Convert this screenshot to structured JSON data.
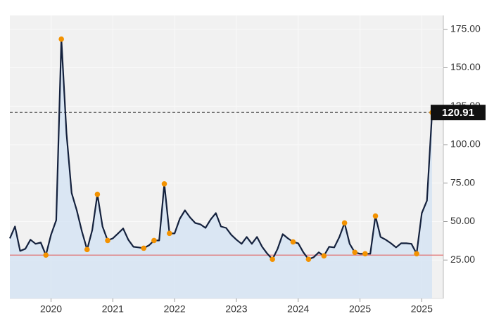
{
  "chart_data": {
    "type": "line",
    "categories": [
      null,
      null,
      null,
      null,
      null,
      null,
      null,
      null,
      "2020",
      null,
      null,
      null,
      null,
      null,
      null,
      null,
      null,
      null,
      null,
      null,
      "2021",
      null,
      null,
      null,
      null,
      null,
      null,
      null,
      null,
      null,
      null,
      null,
      "2022",
      null,
      null,
      null,
      null,
      null,
      null,
      null,
      null,
      null,
      null,
      null,
      "2023",
      null,
      null,
      null,
      null,
      null,
      null,
      null,
      null,
      null,
      null,
      null,
      "2024",
      null,
      null,
      null,
      null,
      null,
      null,
      null,
      null,
      null,
      null,
      null,
      "2025",
      null,
      null,
      null,
      null,
      null,
      null,
      null,
      null,
      null,
      null,
      null,
      "2025",
      null,
      null
    ],
    "values": [
      39.1,
      46.8,
      30.9,
      32.3,
      38.2,
      35.5,
      36.4,
      28.2,
      41.4,
      50.9,
      168.6,
      107.3,
      68.6,
      57.3,
      43.6,
      31.8,
      44.5,
      67.7,
      46.8,
      37.7,
      39.1,
      42.3,
      45.5,
      38.2,
      33.6,
      33.2,
      32.7,
      34.5,
      37.7,
      37.7,
      74.5,
      42.3,
      42.3,
      51.8,
      57.3,
      52.7,
      49.1,
      48.2,
      45.9,
      51.4,
      55.5,
      46.8,
      45.9,
      41.4,
      38.2,
      35.5,
      40.0,
      35.5,
      40.0,
      33.6,
      29.1,
      25.5,
      32.3,
      41.8,
      39.1,
      36.8,
      35.9,
      30.0,
      25.5,
      26.8,
      30.0,
      27.7,
      33.6,
      33.2,
      40.0,
      49.1,
      35.5,
      30.0,
      29.1,
      29.1,
      29.1,
      53.6,
      40.0,
      38.2,
      35.9,
      33.2,
      35.9,
      35.9,
      35.5,
      29.1,
      55.5,
      63.6,
      120.91
    ],
    "color": "#14213d",
    "area_color": "#d6e4f3",
    "marker_points": [
      7,
      10,
      15,
      17,
      19,
      26,
      28,
      30,
      31,
      51,
      55,
      58,
      61,
      65,
      67,
      69,
      71,
      79,
      82
    ],
    "marker_color": "#f39200",
    "reference_line": {
      "value": 28.2,
      "color": "#e07070"
    },
    "ylim": [
      0,
      184
    ],
    "yticks": [
      {
        "value": 25,
        "label": "25.00"
      },
      {
        "value": 50,
        "label": "50.00"
      },
      {
        "value": 75,
        "label": "75.00"
      },
      {
        "value": 100,
        "label": "100.00"
      },
      {
        "value": 125,
        "label": "125.00"
      },
      {
        "value": 150,
        "label": "150.00"
      },
      {
        "value": 175,
        "label": "175.00"
      }
    ],
    "grid": true
  }
}
